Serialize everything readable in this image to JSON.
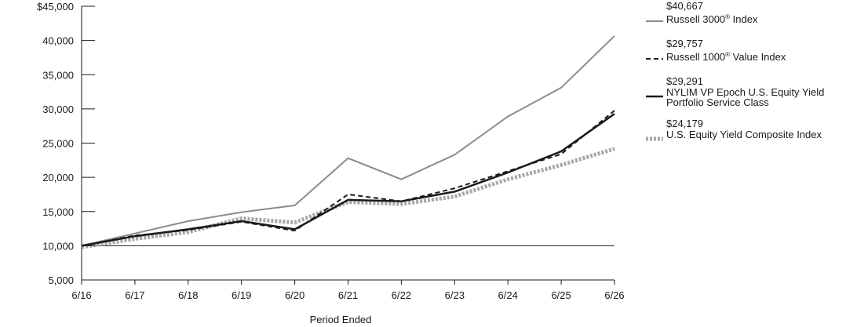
{
  "chart_data": {
    "type": "line",
    "xlabel": "Period Ended",
    "ylabel": "",
    "ylim": [
      5000,
      45000
    ],
    "yticks": [
      5000,
      10000,
      15000,
      20000,
      25000,
      30000,
      35000,
      40000,
      45000
    ],
    "ytick_labels": [
      "5,000",
      "10,000",
      "15,000",
      "20,000",
      "25,000",
      "30,000",
      "35,000",
      "40,000",
      "$45,000"
    ],
    "categories": [
      "6/16",
      "6/17",
      "6/18",
      "6/19",
      "6/20",
      "6/21",
      "6/22",
      "6/23",
      "6/24",
      "6/25",
      "6/26"
    ],
    "baseline": 10000,
    "legend_position": "right",
    "series": [
      {
        "name": "Russell 3000® Index",
        "end_label": "$40,667",
        "color": "#8c8c8c",
        "style": "solid",
        "values": [
          10000,
          11800,
          13600,
          14900,
          15900,
          22800,
          19700,
          23300,
          28900,
          33100,
          40667
        ]
      },
      {
        "name": "Russell 1000® Value Index",
        "end_label": "$29,757",
        "color": "#1a1a1a",
        "style": "dashed",
        "values": [
          10000,
          11500,
          12300,
          13500,
          12200,
          17500,
          16500,
          18400,
          20900,
          23400,
          29757
        ]
      },
      {
        "name": "NYLIM VP Epoch U.S. Equity Yield Portfolio Service Class",
        "end_label": "$29,291",
        "color": "#1a1a1a",
        "style": "solid",
        "values": [
          10000,
          11400,
          12400,
          13600,
          12400,
          16700,
          16500,
          17900,
          20700,
          23800,
          29291
        ]
      },
      {
        "name": "U.S. Equity Yield Composite Index",
        "end_label": "$24,179",
        "color": "#a6a6a6",
        "style": "dotted",
        "values": [
          9800,
          11000,
          12000,
          14000,
          13400,
          16400,
          16100,
          17200,
          19700,
          21800,
          24179
        ]
      }
    ]
  }
}
